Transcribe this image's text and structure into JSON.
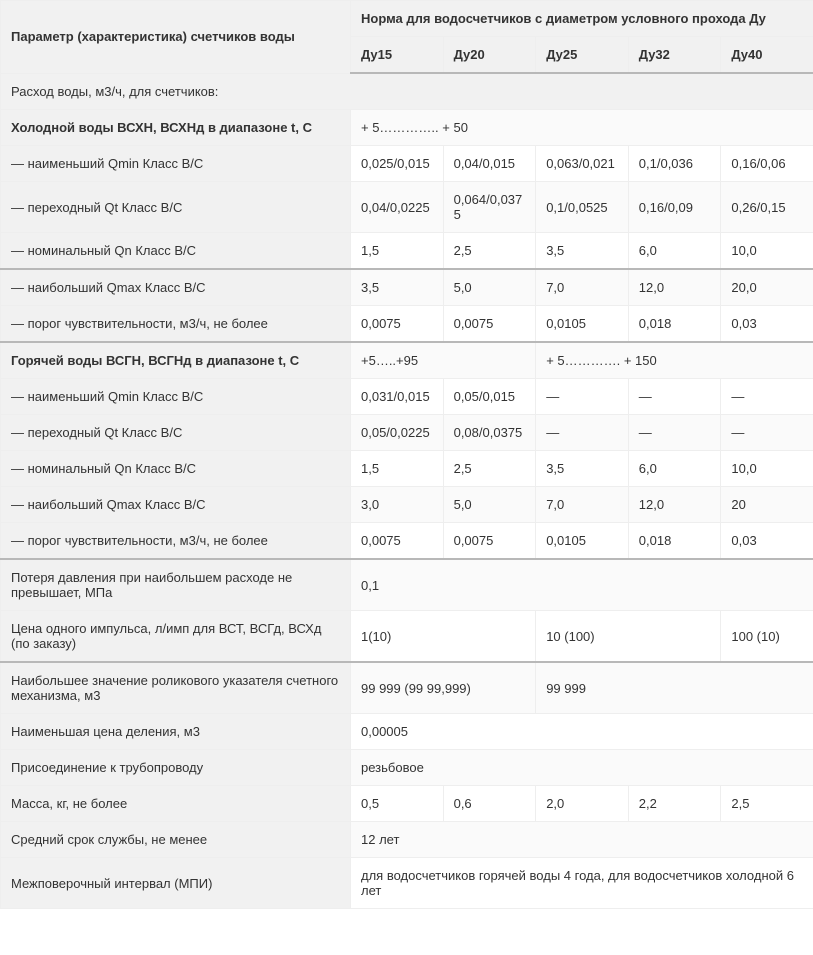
{
  "header": {
    "param": "Параметр (характеристика) счетчиков воды",
    "norm_title": "Норма для водосчетчиков с диаметром условного прохода Ду",
    "cols": [
      "Ду15",
      "Ду20",
      "Ду25",
      "Ду32",
      "Ду40"
    ]
  },
  "section1": "Расход воды, м3/ч, для счетчиков:",
  "cold": {
    "title": "Холодной воды ВСХН, ВСХНд в диапазоне t, С",
    "range": "+ 5………….. + 50",
    "qmin": {
      "label": "— наименьший Qmin Класс В/С",
      "v": [
        "0,025/0,015",
        "0,04/0,015",
        "0,063/0,021",
        "0,1/0,036",
        "0,16/0,06"
      ]
    },
    "qt": {
      "label": "— переходный Qt Класс В/С",
      "v": [
        "0,04/0,0225",
        "0,064/0,0375",
        "0,1/0,0525",
        "0,16/0,09",
        "0,26/0,15"
      ]
    },
    "qn": {
      "label": "— номинальный Qn Класс В/С",
      "v": [
        "1,5",
        "2,5",
        "3,5",
        "6,0",
        "10,0"
      ]
    },
    "qmax": {
      "label": "— наибольший Qmax Класс В/С",
      "v": [
        "3,5",
        "5,0",
        "7,0",
        "12,0",
        "20,0"
      ]
    },
    "thresh": {
      "label": "— порог чувствительности, м3/ч, не более",
      "v": [
        "0,0075",
        "0,0075",
        "0,0105",
        "0,018",
        "0,03"
      ]
    }
  },
  "hot": {
    "title": "Горячей воды ВСГН, ВСГНд в диапазоне t, С",
    "range1": "+5…..+95",
    "range2": "+ 5…………. + 150",
    "qmin": {
      "label": "— наименьший Qmin Класс В/С",
      "v": [
        "0,031/0,015",
        "0,05/0,015",
        "—",
        "—",
        "—"
      ]
    },
    "qt": {
      "label": "— переходный Qt Класс В/С",
      "v": [
        "0,05/0,0225",
        "0,08/0,0375",
        "—",
        "—",
        "—"
      ]
    },
    "qn": {
      "label": "— номинальный Qn Класс В/С",
      "v": [
        "1,5",
        "2,5",
        "3,5",
        "6,0",
        "10,0"
      ]
    },
    "qmax": {
      "label": "— наибольший Qmax Класс В/С",
      "v": [
        "3,0",
        "5,0",
        "7,0",
        "12,0",
        "20"
      ]
    },
    "thresh": {
      "label": "— порог чувствительности, м3/ч, не более",
      "v": [
        "0,0075",
        "0,0075",
        "0,0105",
        "0,018",
        "0,03"
      ]
    }
  },
  "pressure": {
    "label": "Потеря давления при наибольшем расходе не превышает, МПа",
    "value": "0,1"
  },
  "pulse": {
    "label": "Цена одного импульса, л/имп для ВСТ, ВСГд, ВСХд (по заказу)",
    "v1": "1(10)",
    "v2": "10 (100)",
    "v3": "100 (10)"
  },
  "counter": {
    "label": "Наибольшее значение роликового указателя счетного механизма, м3",
    "v1": "99 999 (99 99,999)",
    "v2": "99 999"
  },
  "division": {
    "label": "Наименьшая цена деления, м3",
    "value": "0,00005"
  },
  "connect": {
    "label": "Присоединение к трубопроводу",
    "value": "резьбовое"
  },
  "mass": {
    "label": "Масса, кг, не более",
    "v": [
      "0,5",
      "0,6",
      "2,0",
      "2,2",
      "2,5"
    ]
  },
  "life": {
    "label": "Средний срок службы, не менее",
    "value": "12 лет"
  },
  "mpi": {
    "label": "Межповерочный интервал (МПИ)",
    "value": "для водосчетчиков горячей воды 4 года, для водосчетчиков холодной 6 лет"
  }
}
